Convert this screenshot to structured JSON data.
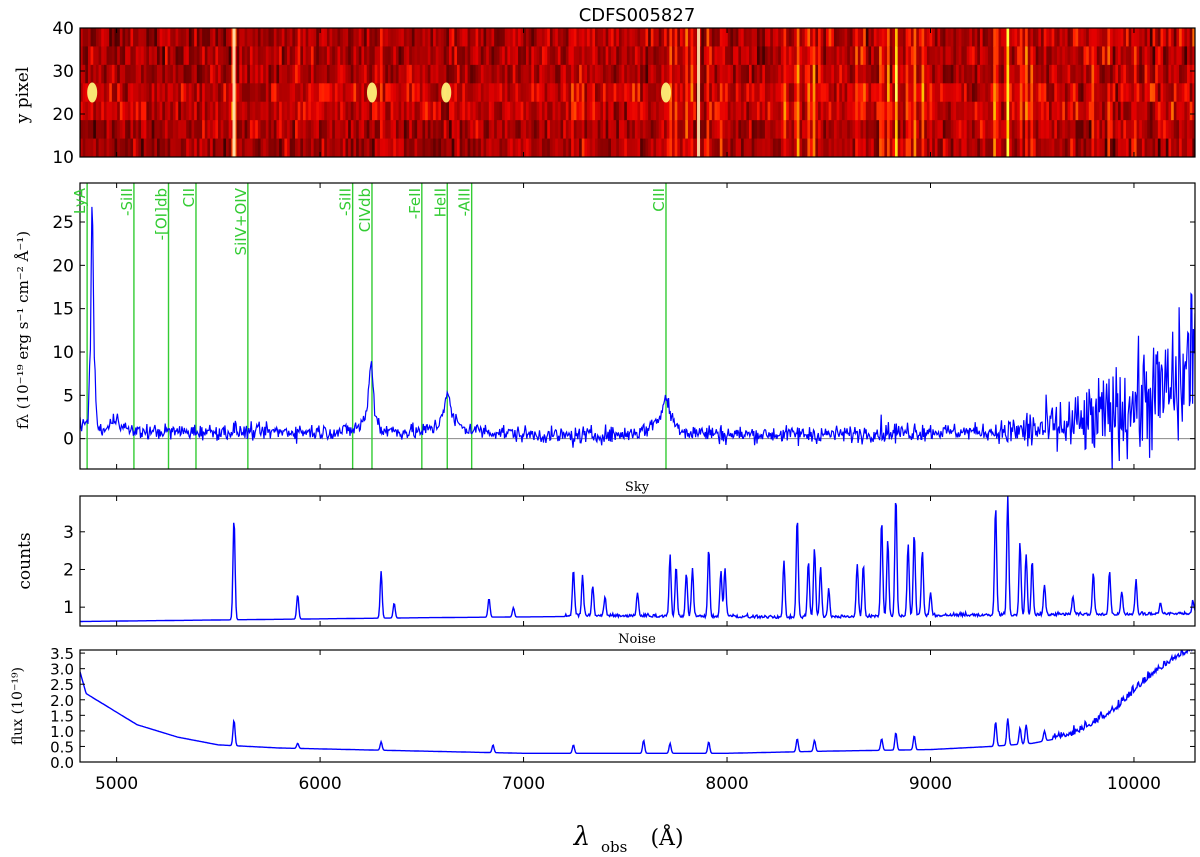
{
  "figure": {
    "title": "CDFS005827",
    "xlabel": "λ",
    "xlabel_sub": "obs",
    "xlabel_unit": "(Å)",
    "xticks": [
      "5000",
      "6000",
      "7000",
      "8000",
      "9000",
      "10000"
    ],
    "xlim": [
      4820,
      10300
    ]
  },
  "panels": {
    "image": {
      "ylabel": "y pixel",
      "ylim": [
        10,
        40
      ],
      "yticks": [
        "10",
        "20",
        "30",
        "40"
      ],
      "colormap": "afmhot"
    },
    "spectrum": {
      "ylabel": "fλ (10⁻¹⁹ erg s⁻¹ cm⁻² Å⁻¹)",
      "ylim": [
        -3.5,
        29.5
      ],
      "yticks": [
        "0",
        "5",
        "10",
        "15",
        "20",
        "25"
      ]
    },
    "sky": {
      "title": "Sky",
      "ylabel": "counts",
      "ylim": [
        0.5,
        3.95
      ],
      "yticks": [
        "1",
        "2",
        "3"
      ]
    },
    "noise": {
      "title": "Noise",
      "ylabel": "flux (10⁻¹⁹)",
      "ylim": [
        0.0,
        3.6
      ],
      "yticks": [
        "0.0",
        "0.5",
        "1.0",
        "1.5",
        "2.0",
        "2.5",
        "3.0",
        "3.5"
      ]
    }
  },
  "colors": {
    "line": "#0000ff",
    "marker": "#33cc33",
    "axis": "#000000"
  },
  "chart_data": [
    {
      "type": "line",
      "panel": "spectrum",
      "title": "",
      "xlabel": "λobs (Å)",
      "ylabel": "fλ (10⁻¹⁹ erg s⁻¹ cm⁻² Å⁻¹)",
      "xlim": [
        4820,
        10300
      ],
      "ylim": [
        -3.5,
        29.5
      ],
      "zero_line": true,
      "line_markers": [
        {
          "label": "LyA",
          "x": 4855
        },
        {
          "label": "-SiII",
          "x": 5085
        },
        {
          "label": "-[OI]db",
          "x": 5255
        },
        {
          "label": "CII",
          "x": 5390
        },
        {
          "label": "SiIV+OIV",
          "x": 5645
        },
        {
          "label": "-SiII",
          "x": 6160
        },
        {
          "label": "CIVdb",
          "x": 6255
        },
        {
          "label": "-FeII",
          "x": 6500
        },
        {
          "label": "HeII",
          "x": 6625
        },
        {
          "label": "-AlII",
          "x": 6745
        },
        {
          "label": "CIII",
          "x": 7700
        }
      ],
      "series": [
        {
          "name": "",
          "x": [
            4820,
            4840,
            4860,
            4870,
            4880,
            4890,
            4900,
            4910,
            4930,
            4950,
            5000,
            5050,
            5100,
            5200,
            5300,
            5400,
            5500,
            5600,
            5700,
            5800,
            5900,
            6000,
            6100,
            6150,
            6200,
            6230,
            6250,
            6270,
            6300,
            6400,
            6500,
            6580,
            6610,
            6625,
            6650,
            6700,
            6800,
            7000,
            7200,
            7500,
            7600,
            7650,
            7680,
            7700,
            7720,
            7750,
            7800,
            8000,
            8500,
            8800,
            9000,
            9200,
            9300,
            9400,
            9500,
            9600,
            9700,
            9800,
            9900,
            10000,
            10100,
            10200,
            10250,
            10300
          ],
          "y": [
            1.5,
            1.5,
            2.5,
            9,
            30,
            10,
            3,
            1.2,
            1,
            1,
            2.5,
            1,
            0.8,
            0.8,
            0.8,
            0.8,
            0.8,
            0.8,
            0.8,
            0.8,
            0.8,
            0.8,
            0.8,
            1,
            1.5,
            3,
            9.5,
            3,
            1,
            0.8,
            0.8,
            1.5,
            3.8,
            5.5,
            2.5,
            1.2,
            0.9,
            0.5,
            0.3,
            0.5,
            1,
            2,
            3,
            5,
            3,
            1.5,
            0.8,
            0.5,
            0.5,
            0.7,
            0.8,
            0.8,
            0.8,
            0.8,
            1,
            1.2,
            1.5,
            2,
            3,
            4,
            5,
            6,
            7,
            12
          ]
        }
      ]
    },
    {
      "type": "line",
      "panel": "sky",
      "title": "Sky",
      "ylabel": "counts",
      "xlim": [
        4820,
        10300
      ],
      "ylim": [
        0.5,
        3.95
      ],
      "series": [
        {
          "name": "",
          "baseline": [
            [
              4820,
              0.62
            ],
            [
              5500,
              0.66
            ],
            [
              6500,
              0.72
            ],
            [
              7200,
              0.75
            ],
            [
              8000,
              0.72
            ],
            [
              8300,
              0.7
            ],
            [
              9000,
              0.75
            ],
            [
              10300,
              0.8
            ]
          ],
          "lines": [
            [
              5577,
              3.4
            ],
            [
              5890,
              1.35
            ],
            [
              6300,
              1.95
            ],
            [
              6364,
              1.1
            ],
            [
              6830,
              1.2
            ],
            [
              6950,
              0.95
            ],
            [
              7245,
              1.95
            ],
            [
              7290,
              1.8
            ],
            [
              7340,
              1.5
            ],
            [
              7400,
              1.2
            ],
            [
              7560,
              1.3
            ],
            [
              7720,
              2.35
            ],
            [
              7750,
              2.0
            ],
            [
              7800,
              1.85
            ],
            [
              7830,
              2.0
            ],
            [
              7910,
              2.5
            ],
            [
              7970,
              1.9
            ],
            [
              7990,
              2.0
            ],
            [
              8280,
              2.2
            ],
            [
              8345,
              3.35
            ],
            [
              8400,
              2.2
            ],
            [
              8430,
              2.55
            ],
            [
              8460,
              2.0
            ],
            [
              8500,
              1.4
            ],
            [
              8640,
              2.1
            ],
            [
              8670,
              2.1
            ],
            [
              8760,
              3.25
            ],
            [
              8790,
              2.75
            ],
            [
              8830,
              3.9
            ],
            [
              8890,
              2.6
            ],
            [
              8920,
              2.9
            ],
            [
              8960,
              2.45
            ],
            [
              9000,
              1.3
            ],
            [
              9320,
              3.6
            ],
            [
              9380,
              3.8
            ],
            [
              9440,
              2.6
            ],
            [
              9470,
              2.3
            ],
            [
              9500,
              2.1
            ],
            [
              9560,
              1.5
            ],
            [
              9700,
              1.2
            ],
            [
              9800,
              1.8
            ],
            [
              9880,
              1.85
            ],
            [
              9940,
              1.3
            ],
            [
              10010,
              1.6
            ],
            [
              10130,
              1.0
            ],
            [
              10290,
              1.05
            ]
          ]
        }
      ]
    },
    {
      "type": "line",
      "panel": "noise",
      "title": "Noise",
      "ylabel": "flux (10⁻¹⁹)",
      "xlim": [
        4820,
        10300
      ],
      "ylim": [
        0.0,
        3.6
      ],
      "series": [
        {
          "name": "",
          "baseline": [
            [
              4820,
              2.9
            ],
            [
              4850,
              2.2
            ],
            [
              4950,
              1.8
            ],
            [
              5100,
              1.2
            ],
            [
              5300,
              0.8
            ],
            [
              5500,
              0.55
            ],
            [
              5800,
              0.45
            ],
            [
              6500,
              0.35
            ],
            [
              7000,
              0.28
            ],
            [
              8000,
              0.28
            ],
            [
              8500,
              0.35
            ],
            [
              9000,
              0.4
            ],
            [
              9300,
              0.5
            ],
            [
              9500,
              0.6
            ],
            [
              9700,
              0.85
            ],
            [
              9800,
              1.2
            ],
            [
              9900,
              1.6
            ],
            [
              10000,
              2.2
            ],
            [
              10100,
              2.8
            ],
            [
              10200,
              3.3
            ],
            [
              10300,
              3.6
            ]
          ],
          "lines": [
            [
              5577,
              1.35
            ],
            [
              5890,
              0.6
            ],
            [
              6300,
              0.65
            ],
            [
              6850,
              0.55
            ],
            [
              7245,
              0.55
            ],
            [
              7590,
              0.7
            ],
            [
              7720,
              0.6
            ],
            [
              7910,
              0.65
            ],
            [
              8345,
              0.75
            ],
            [
              8430,
              0.7
            ],
            [
              8760,
              0.75
            ],
            [
              8830,
              0.95
            ],
            [
              8920,
              0.85
            ],
            [
              9320,
              1.3
            ],
            [
              9380,
              1.4
            ],
            [
              9440,
              1.1
            ],
            [
              9470,
              1.2
            ],
            [
              9560,
              1.0
            ]
          ]
        }
      ]
    }
  ]
}
